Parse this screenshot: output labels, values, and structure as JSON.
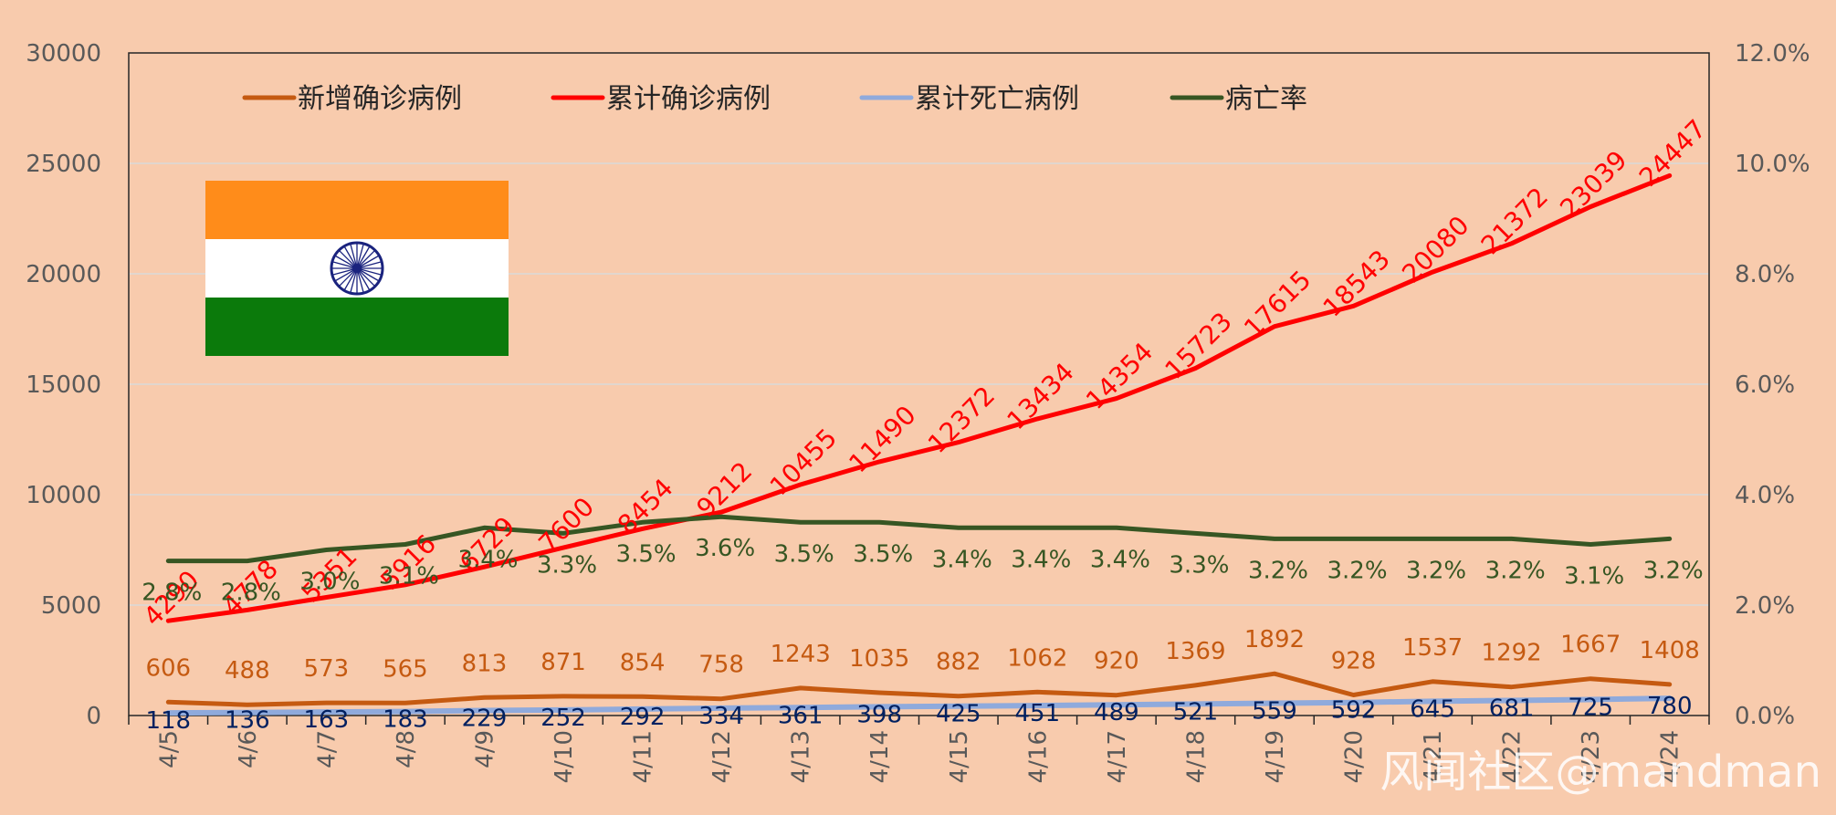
{
  "chart_data": {
    "type": "line",
    "categories": [
      "4/5",
      "4/6",
      "4/7",
      "4/8",
      "4/9",
      "4/10",
      "4/11",
      "4/12",
      "4/13",
      "4/14",
      "4/15",
      "4/16",
      "4/17",
      "4/18",
      "4/19",
      "4/20",
      "4/21",
      "4/22",
      "4/23",
      "4/24"
    ],
    "y_left": {
      "min": 0,
      "max": 30000,
      "ticks": [
        "0",
        "5000",
        "10000",
        "15000",
        "20000",
        "25000",
        "30000"
      ]
    },
    "y_right": {
      "min": 0,
      "max": 0.12,
      "ticks": [
        "0.0%",
        "2.0%",
        "4.0%",
        "6.0%",
        "8.0%",
        "10.0%",
        "12.0%"
      ]
    },
    "grid": true,
    "legend_position": "top",
    "series": [
      {
        "name": "新增确诊病例",
        "axis": "left",
        "color": "#c55a11",
        "label_color": "#c55a11",
        "values": [
          606,
          488,
          573,
          565,
          813,
          871,
          854,
          758,
          1243,
          1035,
          882,
          1062,
          920,
          1369,
          1892,
          928,
          1537,
          1292,
          1667,
          1408
        ],
        "labels": [
          "606",
          "488",
          "573",
          "565",
          "813",
          "871",
          "854",
          "758",
          "1243",
          "1035",
          "882",
          "1062",
          "920",
          "1369",
          "1892",
          "928",
          "1537",
          "1292",
          "1667",
          "1408"
        ]
      },
      {
        "name": "累计确诊病例",
        "axis": "left",
        "color": "#ff0000",
        "label_color": "#ff0000",
        "values": [
          4290,
          4778,
          5351,
          5916,
          6729,
          7600,
          8454,
          9212,
          10455,
          11490,
          12372,
          13434,
          14354,
          15723,
          17615,
          18543,
          20080,
          21372,
          23039,
          24447
        ],
        "labels": [
          "4290",
          "4778",
          "5351",
          "5916",
          "6729",
          "7600",
          "8454",
          "9212",
          "10455",
          "11490",
          "12372",
          "13434",
          "14354",
          "15723",
          "17615",
          "18543",
          "20080",
          "21372",
          "23039",
          "24447"
        ]
      },
      {
        "name": "累计死亡病例",
        "axis": "left",
        "color": "#8faadc",
        "label_color": "#002060",
        "values": [
          118,
          136,
          163,
          183,
          229,
          252,
          292,
          334,
          361,
          398,
          425,
          451,
          489,
          521,
          559,
          592,
          645,
          681,
          725,
          780
        ],
        "labels": [
          "118",
          "136",
          "163",
          "183",
          "229",
          "252",
          "292",
          "334",
          "361",
          "398",
          "425",
          "451",
          "489",
          "521",
          "559",
          "592",
          "645",
          "681",
          "725",
          "780"
        ]
      },
      {
        "name": "病亡率",
        "axis": "right",
        "color": "#375623",
        "label_color": "#375623",
        "values": [
          0.028,
          0.028,
          0.03,
          0.031,
          0.034,
          0.033,
          0.035,
          0.036,
          0.035,
          0.035,
          0.034,
          0.034,
          0.034,
          0.033,
          0.032,
          0.032,
          0.032,
          0.032,
          0.031,
          0.032
        ],
        "labels": [
          "2.8%",
          "2.8%",
          "3.0%",
          "3.1%",
          "3.4%",
          "3.3%",
          "3.5%",
          "3.6%",
          "3.5%",
          "3.5%",
          "3.4%",
          "3.4%",
          "3.4%",
          "3.3%",
          "3.2%",
          "3.2%",
          "3.2%",
          "3.2%",
          "3.1%",
          "3.2%"
        ]
      }
    ]
  },
  "flag": {
    "name": "india-flag",
    "colors": {
      "saffron": "#ff8c1a",
      "white": "#ffffff",
      "green": "#0b7a0b",
      "chakra": "#1a237e"
    }
  },
  "watermark": "风闻社区@mandman",
  "colors": {
    "background": "#f8cbad",
    "axis_text": "#595959",
    "grid": "#d9d9d9"
  }
}
